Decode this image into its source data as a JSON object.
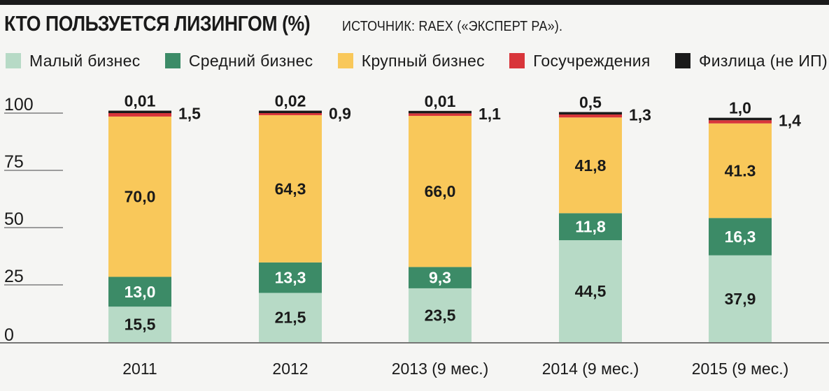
{
  "header": {
    "title": "КТО ПОЛЬЗУЕТСЯ ЛИЗИНГОМ (%)",
    "source": "ИСТОЧНИК: RAEX («ЭКСПЕРТ РА»)."
  },
  "chart_data": {
    "type": "bar",
    "stacked": true,
    "title": "КТО ПОЛЬЗУЕТСЯ ЛИЗИНГОМ (%)",
    "xlabel": "",
    "ylabel": "",
    "ylim": [
      0,
      100
    ],
    "yticks": [
      "0",
      "25",
      "50",
      "75",
      "100"
    ],
    "grid": false,
    "legend_position": "top",
    "categories": [
      "2011",
      "2012",
      "2013 (9 мес.)",
      "2014 (9 мес.)",
      "2015 (9 мес.)"
    ],
    "series": [
      {
        "name": "Малый бизнес",
        "color": "#b7dac6",
        "values": [
          15.5,
          21.5,
          23.5,
          44.5,
          37.9
        ],
        "labels": [
          "15,5",
          "21,5",
          "23,5",
          "44,5",
          "37,9"
        ]
      },
      {
        "name": "Средний бизнес",
        "color": "#3c8b67",
        "values": [
          13.0,
          13.3,
          9.3,
          11.8,
          16.3
        ],
        "labels": [
          "13,0",
          "13,3",
          "9,3",
          "11,8",
          "16,3"
        ]
      },
      {
        "name": "Крупный бизнес",
        "color": "#f9c85a",
        "values": [
          70.0,
          64.3,
          66.0,
          41.8,
          41.3
        ],
        "labels": [
          "70,0",
          "64,3",
          "66,0",
          "41,8",
          "41.3"
        ]
      },
      {
        "name": "Госучреждения",
        "color": "#d8353a",
        "values": [
          1.5,
          0.9,
          1.1,
          1.3,
          1.4
        ],
        "labels": [
          "1,5",
          "0,9",
          "1,1",
          "1,3",
          "1,4"
        ]
      },
      {
        "name": "Физлица (не ИП)",
        "color": "#1a1a1a",
        "values": [
          0.01,
          0.02,
          0.01,
          0.5,
          1.0
        ],
        "labels": [
          "0,01",
          "0,02",
          "0,01",
          "0,5",
          "1,0"
        ]
      }
    ]
  }
}
